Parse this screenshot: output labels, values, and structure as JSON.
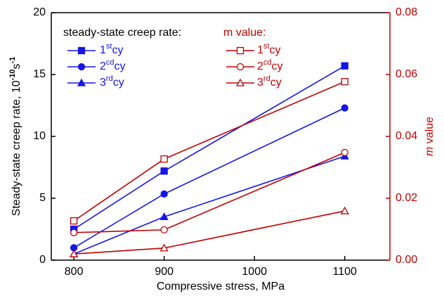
{
  "chart_data": {
    "type": "line",
    "x_label": "Compressive stress, MPa",
    "y_label": [
      "Steady-state creep rate, 10",
      "-10",
      "s",
      "-1"
    ],
    "y2_label": [
      "m",
      " value"
    ],
    "legend_titles": [
      "steady-state creep rate:",
      "m value:"
    ],
    "x": [
      800,
      900,
      1100
    ],
    "xlim": [
      775,
      1150
    ],
    "xticks": [
      800,
      900,
      1000,
      1100
    ],
    "ylim": [
      0,
      20
    ],
    "yticks": [
      0,
      5,
      10,
      15,
      20
    ],
    "y2lim": [
      0,
      0.08
    ],
    "y2ticks": [
      {
        "value": 0,
        "label": "0.00"
      },
      {
        "value": 0.02,
        "label": "0.02"
      },
      {
        "value": 0.04,
        "label": "0.04"
      },
      {
        "value": 0.06,
        "label": "0.06"
      },
      {
        "value": 0.08,
        "label": "0.08"
      }
    ],
    "y_color": "#000000",
    "y2_color": "#c00000",
    "series": [
      {
        "name": "1stcy",
        "color": "#1515e6",
        "marker": "square",
        "filled": true,
        "values": [
          2.5,
          7.2,
          15.7
        ]
      },
      {
        "name": "2cdcy",
        "color": "#1515e6",
        "marker": "circle",
        "filled": true,
        "values": [
          1.0,
          5.35,
          12.3
        ]
      },
      {
        "name": "3rdcy",
        "color": "#1515e6",
        "marker": "triangle",
        "filled": true,
        "values": [
          0.5,
          3.5,
          8.4
        ]
      },
      {
        "name": "1stcy",
        "color": "#c00000",
        "marker": "square",
        "filled": false,
        "axis": "y2",
        "values": [
          0.0127,
          0.0327,
          0.0577
        ]
      },
      {
        "name": "2cdcy",
        "color": "#c00000",
        "marker": "circle",
        "filled": false,
        "axis": "y2",
        "values": [
          0.0089,
          0.0098,
          0.0348
        ]
      },
      {
        "name": "3rdcy",
        "color": "#c00000",
        "marker": "triangle",
        "filled": false,
        "axis": "y2",
        "values": [
          0.002,
          0.0039,
          0.0159
        ]
      }
    ]
  }
}
